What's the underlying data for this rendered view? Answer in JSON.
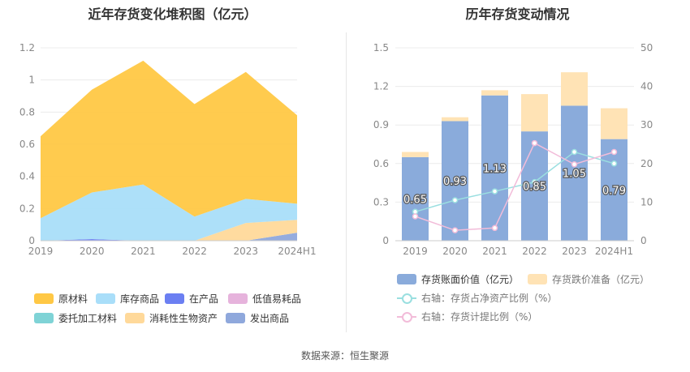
{
  "left_chart": {
    "title": "近年存货变化堆积图（亿元）",
    "legend": [
      {
        "name": "原材料",
        "color": "#FFC845"
      },
      {
        "name": "库存商品",
        "color": "#A9DEF9"
      },
      {
        "name": "在产品",
        "color": "#6B7FF2"
      },
      {
        "name": "低值易耗品",
        "color": "#E6B3DC"
      },
      {
        "name": "委托加工材料",
        "color": "#7FD3D6"
      },
      {
        "name": "消耗性生物资产",
        "color": "#FFD99A"
      },
      {
        "name": "发出商品",
        "color": "#8FA8DC"
      }
    ]
  },
  "right_chart": {
    "title": "历年存货变动情况",
    "legend": [
      {
        "name": "存货账面价值（亿元）",
        "color": "#8AABDB"
      },
      {
        "name": "存货跌价准备（亿元）",
        "color": "#FFE3B5"
      },
      {
        "name": "右轴：存货占净资产比例（%）",
        "color": "#9ADFE0"
      },
      {
        "name": "右轴：存货计提比例（%）",
        "color": "#F2BCD9"
      }
    ]
  },
  "chart_data": [
    {
      "type": "area",
      "stacked": true,
      "title": "近年存货变化堆积图（亿元）",
      "categories": [
        "2019",
        "2020",
        "2021",
        "2022",
        "2023",
        "2024H1"
      ],
      "ylim": [
        0,
        1.2
      ],
      "yticks": [
        "0",
        "0.2",
        "0.4",
        "0.6",
        "0.8",
        "1",
        "1.2"
      ],
      "series": [
        {
          "name": "发出商品",
          "values": [
            0,
            0,
            0,
            0,
            0,
            0.05
          ]
        },
        {
          "name": "消耗性生物资产",
          "values": [
            0,
            0,
            0,
            0,
            0.11,
            0.08
          ]
        },
        {
          "name": "委托加工材料",
          "values": [
            0,
            0,
            0,
            0,
            0,
            0
          ]
        },
        {
          "name": "低值易耗品",
          "values": [
            0,
            0,
            0,
            0,
            0,
            0
          ]
        },
        {
          "name": "在产品",
          "values": [
            0,
            0.01,
            0,
            0,
            0,
            0
          ]
        },
        {
          "name": "库存商品",
          "values": [
            0.14,
            0.29,
            0.35,
            0.15,
            0.15,
            0.1
          ]
        },
        {
          "name": "原材料",
          "values": [
            0.51,
            0.64,
            0.77,
            0.7,
            0.79,
            0.55
          ]
        }
      ]
    },
    {
      "type": "bar",
      "stacked": true,
      "title": "历年存货变动情况",
      "categories": [
        "2019",
        "2020",
        "2021",
        "2022",
        "2023",
        "2024H1"
      ],
      "ylim": [
        0,
        1.5
      ],
      "yticks": [
        "0",
        "0.3",
        "0.6",
        "0.9",
        "1.2",
        "1.5"
      ],
      "y2lim": [
        0,
        50
      ],
      "y2ticks": [
        "0",
        "10",
        "20",
        "30",
        "40",
        "50"
      ],
      "series": [
        {
          "name": "存货账面价值（亿元）",
          "values": [
            0.65,
            0.93,
            1.13,
            0.85,
            1.05,
            0.79
          ],
          "labels": [
            "0.65",
            "0.93",
            "1.13",
            "0.85",
            "1.05",
            "0.79"
          ]
        },
        {
          "name": "存货跌价准备（亿元）",
          "values": [
            0.04,
            0.03,
            0.04,
            0.29,
            0.26,
            0.24
          ]
        }
      ],
      "lines": [
        {
          "name": "右轴：存货占净资产比例（%）",
          "axis": "right",
          "values": [
            7.5,
            10.5,
            12.8,
            15.2,
            23.0,
            20.0
          ]
        },
        {
          "name": "右轴：存货计提比例（%）",
          "axis": "right",
          "values": [
            6.3,
            2.7,
            3.3,
            25.3,
            19.8,
            23.0
          ]
        }
      ]
    }
  ],
  "source": "数据来源：恒生聚源"
}
